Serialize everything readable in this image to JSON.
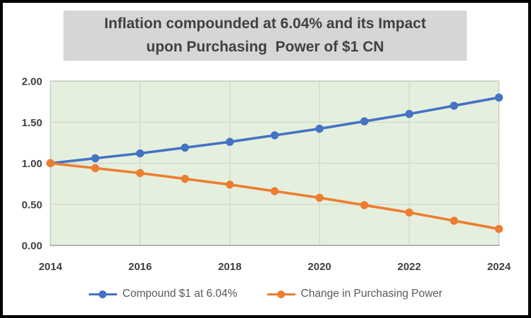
{
  "title": {
    "text": "Inflation compounded at 6.04% and its Impact\nupon Purchasing  Power of $1 CN",
    "bg": "#d6d6d6",
    "color": "#404040"
  },
  "legend": {
    "text_color": "#595959"
  },
  "chart_data": {
    "type": "line",
    "title": "Inflation compounded at 6.04% and its Impact upon Purchasing Power of $1 CN",
    "xlabel": "",
    "ylabel": "",
    "x": [
      2014,
      2015,
      2016,
      2017,
      2018,
      2019,
      2020,
      2021,
      2022,
      2023,
      2024
    ],
    "series": [
      {
        "name": "Compound $1 at 6.04%",
        "color": "#4472c4",
        "values": [
          1.0,
          1.06,
          1.12,
          1.19,
          1.26,
          1.34,
          1.42,
          1.51,
          1.6,
          1.7,
          1.8
        ]
      },
      {
        "name": "Change in Purchasing Power",
        "color": "#ed7d31",
        "values": [
          1.0,
          0.94,
          0.88,
          0.81,
          0.74,
          0.66,
          0.58,
          0.49,
          0.4,
          0.3,
          0.2
        ]
      }
    ],
    "xlim": [
      2014,
      2024
    ],
    "ylim": [
      0,
      2
    ],
    "xticks": [
      2014,
      2016,
      2018,
      2020,
      2022,
      2024
    ],
    "xtick_labels": [
      "2014",
      "2016",
      "2018",
      "2020",
      "2022",
      "2024"
    ],
    "yticks": [
      0,
      0.5,
      1,
      1.5,
      2
    ],
    "ytick_labels": [
      "0.00",
      "0.50",
      "1.00",
      "1.50",
      "2.00"
    ],
    "grid": true,
    "legend_position": "bottom",
    "plot_bg": "#e5efdd",
    "grid_color": "#d4dacf",
    "plot_border_color": "#c6ccc2",
    "axis_line_color": "#9ea49e",
    "tick_label_color": "#404040"
  }
}
